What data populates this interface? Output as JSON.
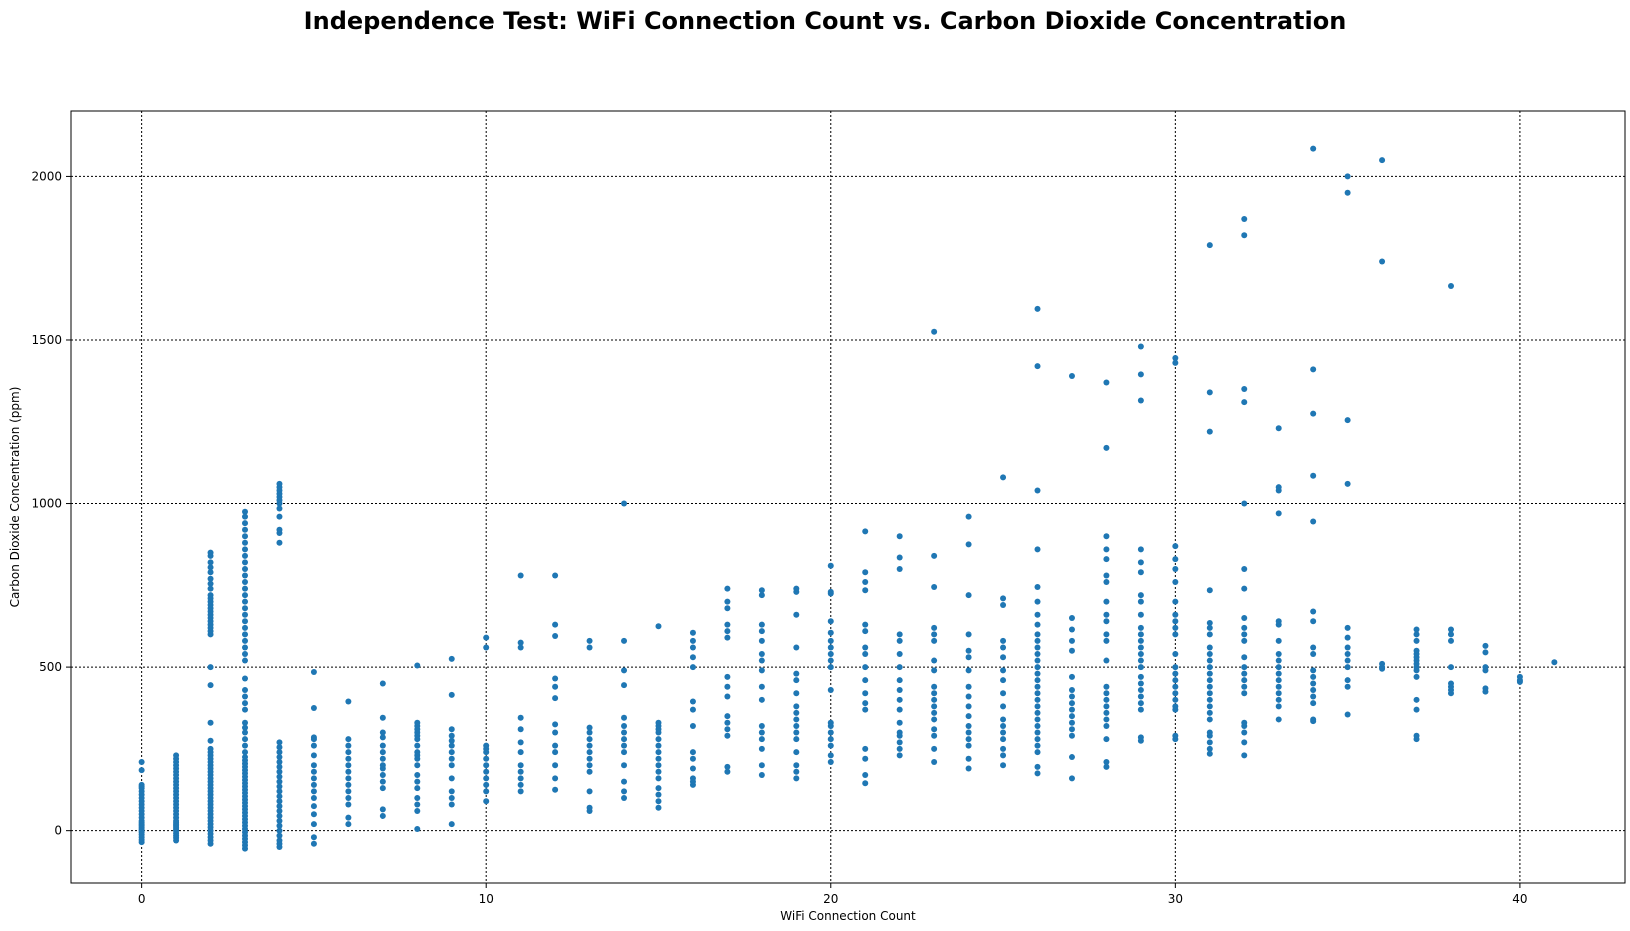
{
  "chart_data": {
    "type": "scatter",
    "title": "Independence Test: WiFi Connection Count vs. Carbon Dioxide Concentration",
    "xlabel": "WiFi Connection Count",
    "ylabel": "Carbon Dioxide Concentration (ppm)",
    "xlim": [
      -2.05,
      43.05
    ],
    "ylim": [
      -160,
      2200
    ],
    "xticks": [
      0,
      10,
      20,
      30,
      40
    ],
    "yticks": [
      0,
      500,
      1000,
      1500,
      2000
    ],
    "grid": true,
    "color": "#1f77b4",
    "columns": [
      {
        "x": 0,
        "y": [
          -35,
          -28,
          -20,
          -12,
          -5,
          0,
          5,
          10,
          15,
          20,
          25,
          30,
          40,
          50,
          60,
          70,
          80,
          90,
          100,
          110,
          120,
          130,
          135,
          140,
          185,
          210
        ]
      },
      {
        "x": 1,
        "y": [
          -30,
          -22,
          -15,
          -8,
          0,
          5,
          10,
          15,
          20,
          25,
          30,
          40,
          50,
          60,
          70,
          80,
          90,
          100,
          110,
          120,
          130,
          140,
          150,
          160,
          170,
          180,
          190,
          200,
          210,
          220,
          230
        ]
      },
      {
        "x": 2,
        "y": [
          -40,
          -30,
          -20,
          -10,
          0,
          10,
          20,
          30,
          40,
          50,
          60,
          70,
          80,
          90,
          100,
          110,
          120,
          130,
          140,
          150,
          160,
          170,
          180,
          190,
          200,
          210,
          220,
          230,
          240,
          250,
          275,
          330,
          445,
          500,
          600,
          610,
          620,
          630,
          640,
          650,
          660,
          670,
          680,
          690,
          700,
          710,
          720,
          740,
          755,
          770,
          790,
          805,
          820,
          840,
          850
        ]
      },
      {
        "x": 3,
        "y": [
          -55,
          -45,
          -35,
          -25,
          -15,
          -5,
          5,
          15,
          25,
          35,
          45,
          55,
          65,
          75,
          85,
          95,
          105,
          115,
          125,
          135,
          145,
          155,
          165,
          175,
          185,
          195,
          205,
          215,
          225,
          240,
          260,
          280,
          300,
          315,
          330,
          370,
          390,
          410,
          430,
          465,
          520,
          540,
          560,
          580,
          600,
          620,
          640,
          660,
          680,
          700,
          720,
          740,
          760,
          780,
          800,
          820,
          840,
          860,
          880,
          900,
          920,
          940,
          960,
          975
        ]
      },
      {
        "x": 4,
        "y": [
          -50,
          -40,
          -30,
          -15,
          0,
          15,
          30,
          45,
          60,
          75,
          90,
          105,
          120,
          135,
          150,
          165,
          180,
          195,
          210,
          225,
          240,
          255,
          270,
          880,
          910,
          920,
          960,
          985,
          1000,
          1010,
          1020,
          1030,
          1040,
          1050,
          1060
        ]
      },
      {
        "x": 5,
        "y": [
          -40,
          -20,
          20,
          50,
          75,
          100,
          120,
          140,
          160,
          180,
          200,
          230,
          260,
          280,
          285,
          375,
          485
        ]
      },
      {
        "x": 6,
        "y": [
          20,
          40,
          80,
          100,
          120,
          140,
          160,
          180,
          200,
          220,
          240,
          260,
          280,
          395
        ]
      },
      {
        "x": 7,
        "y": [
          45,
          65,
          130,
          150,
          170,
          190,
          200,
          220,
          240,
          260,
          285,
          300,
          345,
          450
        ]
      },
      {
        "x": 8,
        "y": [
          5,
          60,
          80,
          100,
          130,
          150,
          170,
          200,
          220,
          230,
          240,
          260,
          280,
          290,
          300,
          310,
          320,
          330,
          505
        ]
      },
      {
        "x": 9,
        "y": [
          20,
          80,
          100,
          120,
          160,
          200,
          220,
          240,
          260,
          275,
          290,
          310,
          415,
          525
        ]
      },
      {
        "x": 10,
        "y": [
          90,
          120,
          140,
          160,
          180,
          200,
          220,
          240,
          250,
          260,
          560,
          590
        ]
      },
      {
        "x": 11,
        "y": [
          120,
          140,
          160,
          180,
          200,
          240,
          270,
          310,
          345,
          560,
          575,
          780
        ]
      },
      {
        "x": 12,
        "y": [
          125,
          160,
          200,
          240,
          260,
          300,
          325,
          405,
          440,
          465,
          595,
          630,
          780
        ]
      },
      {
        "x": 13,
        "y": [
          60,
          70,
          120,
          180,
          200,
          220,
          240,
          260,
          280,
          300,
          315,
          560,
          580
        ]
      },
      {
        "x": 14,
        "y": [
          100,
          120,
          150,
          200,
          240,
          260,
          280,
          300,
          320,
          345,
          445,
          490,
          580,
          1000
        ]
      },
      {
        "x": 15,
        "y": [
          70,
          90,
          110,
          130,
          160,
          180,
          200,
          220,
          240,
          260,
          280,
          300,
          310,
          320,
          330,
          625
        ]
      },
      {
        "x": 16,
        "y": [
          140,
          150,
          160,
          190,
          220,
          240,
          320,
          370,
          395,
          500,
          530,
          560,
          580,
          605
        ]
      },
      {
        "x": 17,
        "y": [
          180,
          195,
          290,
          310,
          330,
          350,
          410,
          440,
          470,
          590,
          610,
          630,
          680,
          700,
          740
        ]
      },
      {
        "x": 18,
        "y": [
          170,
          200,
          250,
          280,
          300,
          320,
          400,
          440,
          490,
          520,
          540,
          580,
          610,
          630,
          720,
          735
        ]
      },
      {
        "x": 19,
        "y": [
          160,
          180,
          200,
          240,
          280,
          300,
          320,
          340,
          360,
          380,
          420,
          460,
          480,
          560,
          660,
          730,
          740
        ]
      },
      {
        "x": 20,
        "y": [
          210,
          230,
          260,
          280,
          300,
          320,
          330,
          430,
          500,
          520,
          540,
          560,
          580,
          605,
          640,
          725,
          730,
          810
        ]
      },
      {
        "x": 21,
        "y": [
          145,
          170,
          220,
          250,
          370,
          390,
          420,
          460,
          500,
          540,
          560,
          610,
          630,
          735,
          760,
          790,
          915
        ]
      },
      {
        "x": 22,
        "y": [
          230,
          250,
          270,
          290,
          300,
          330,
          370,
          400,
          430,
          460,
          500,
          540,
          580,
          600,
          800,
          835,
          900
        ]
      },
      {
        "x": 23,
        "y": [
          210,
          250,
          290,
          310,
          340,
          360,
          380,
          400,
          420,
          440,
          490,
          520,
          580,
          600,
          620,
          745,
          840,
          1525
        ]
      },
      {
        "x": 24,
        "y": [
          190,
          220,
          260,
          280,
          300,
          320,
          350,
          380,
          410,
          440,
          490,
          530,
          550,
          600,
          720,
          875,
          960
        ]
      },
      {
        "x": 25,
        "y": [
          200,
          230,
          250,
          280,
          300,
          320,
          340,
          380,
          420,
          460,
          490,
          530,
          560,
          580,
          690,
          710,
          1080
        ]
      },
      {
        "x": 26,
        "y": [
          175,
          195,
          240,
          260,
          280,
          300,
          320,
          340,
          360,
          380,
          400,
          420,
          440,
          460,
          480,
          500,
          520,
          540,
          560,
          580,
          600,
          630,
          660,
          700,
          745,
          860,
          1040,
          1420,
          1595
        ]
      },
      {
        "x": 27,
        "y": [
          160,
          225,
          290,
          310,
          330,
          350,
          370,
          390,
          410,
          430,
          470,
          550,
          580,
          615,
          650,
          1390
        ]
      },
      {
        "x": 28,
        "y": [
          195,
          210,
          280,
          320,
          340,
          360,
          380,
          400,
          420,
          440,
          520,
          580,
          600,
          640,
          660,
          700,
          760,
          780,
          830,
          860,
          900,
          1170,
          1370
        ]
      },
      {
        "x": 29,
        "y": [
          275,
          285,
          370,
          390,
          410,
          430,
          450,
          470,
          500,
          520,
          540,
          560,
          580,
          600,
          620,
          660,
          700,
          720,
          790,
          820,
          860,
          1315,
          1395,
          1480
        ]
      },
      {
        "x": 30,
        "y": [
          280,
          290,
          370,
          380,
          400,
          420,
          440,
          460,
          480,
          500,
          540,
          600,
          620,
          640,
          660,
          700,
          760,
          800,
          830,
          870,
          1430,
          1445
        ]
      },
      {
        "x": 31,
        "y": [
          235,
          250,
          270,
          290,
          300,
          340,
          360,
          380,
          400,
          420,
          440,
          460,
          480,
          500,
          520,
          540,
          560,
          600,
          620,
          635,
          735,
          1220,
          1340,
          1790
        ]
      },
      {
        "x": 32,
        "y": [
          230,
          270,
          300,
          320,
          330,
          420,
          440,
          460,
          480,
          500,
          530,
          580,
          600,
          620,
          650,
          740,
          800,
          1000,
          1310,
          1350,
          1820,
          1870
        ]
      },
      {
        "x": 33,
        "y": [
          340,
          380,
          400,
          420,
          440,
          460,
          480,
          500,
          520,
          540,
          580,
          630,
          640,
          970,
          1040,
          1050,
          1230
        ]
      },
      {
        "x": 34,
        "y": [
          335,
          340,
          390,
          410,
          430,
          450,
          470,
          490,
          540,
          560,
          640,
          670,
          945,
          1085,
          1275,
          1410,
          2085
        ]
      },
      {
        "x": 35,
        "y": [
          355,
          440,
          460,
          500,
          520,
          540,
          560,
          590,
          620,
          1060,
          1255,
          1950,
          2000
        ]
      },
      {
        "x": 36,
        "y": [
          495,
          500,
          510,
          1740,
          2050
        ]
      },
      {
        "x": 37,
        "y": [
          280,
          290,
          370,
          400,
          470,
          490,
          500,
          510,
          520,
          530,
          540,
          550,
          580,
          600,
          615
        ]
      },
      {
        "x": 38,
        "y": [
          420,
          430,
          440,
          450,
          500,
          580,
          600,
          615,
          1665
        ]
      },
      {
        "x": 39,
        "y": [
          425,
          435,
          490,
          500,
          545,
          565
        ]
      },
      {
        "x": 40,
        "y": [
          455,
          460,
          470
        ]
      },
      {
        "x": 41,
        "y": [
          515
        ]
      }
    ]
  }
}
